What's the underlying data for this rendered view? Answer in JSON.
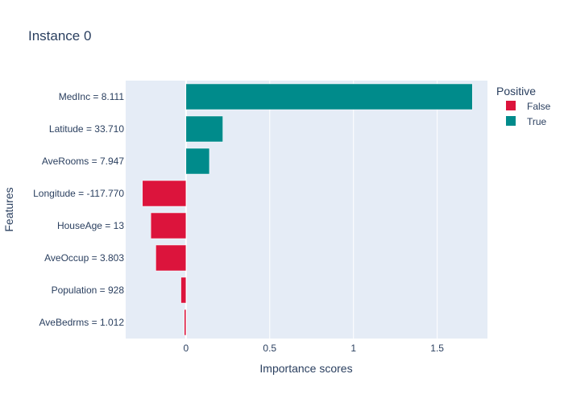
{
  "chart_data": {
    "type": "bar",
    "orientation": "horizontal",
    "title": "Instance 0",
    "xlabel": "Importance scores",
    "ylabel": "Features",
    "xlim": [
      -0.36,
      1.8
    ],
    "xticks": [
      0,
      0.5,
      1,
      1.5
    ],
    "xtick_labels": [
      "0",
      "0.5",
      "1",
      "1.5"
    ],
    "grid": true,
    "legend": {
      "title": "Positive",
      "placement": "right",
      "entries": [
        {
          "name": "False",
          "color": "#dc143c"
        },
        {
          "name": "True",
          "color": "#008b8b"
        }
      ]
    },
    "bars": [
      {
        "label": "MedInc = 8.111",
        "value": 1.71,
        "positive": "True"
      },
      {
        "label": "Latitude = 33.710",
        "value": 0.22,
        "positive": "True"
      },
      {
        "label": "AveRooms = 7.947",
        "value": 0.14,
        "positive": "True"
      },
      {
        "label": "Longitude = -117.770",
        "value": -0.26,
        "positive": "False"
      },
      {
        "label": "HouseAge = 13",
        "value": -0.21,
        "positive": "False"
      },
      {
        "label": "AveOccup = 3.803",
        "value": -0.18,
        "positive": "False"
      },
      {
        "label": "Population = 928",
        "value": -0.03,
        "positive": "False"
      },
      {
        "label": "AveBedrms = 1.012",
        "value": -0.01,
        "positive": "False"
      }
    ],
    "colors": {
      "True": "#008b8b",
      "False": "#dc143c",
      "plot_bg": "#e5ecf6",
      "grid": "#ffffff"
    }
  }
}
